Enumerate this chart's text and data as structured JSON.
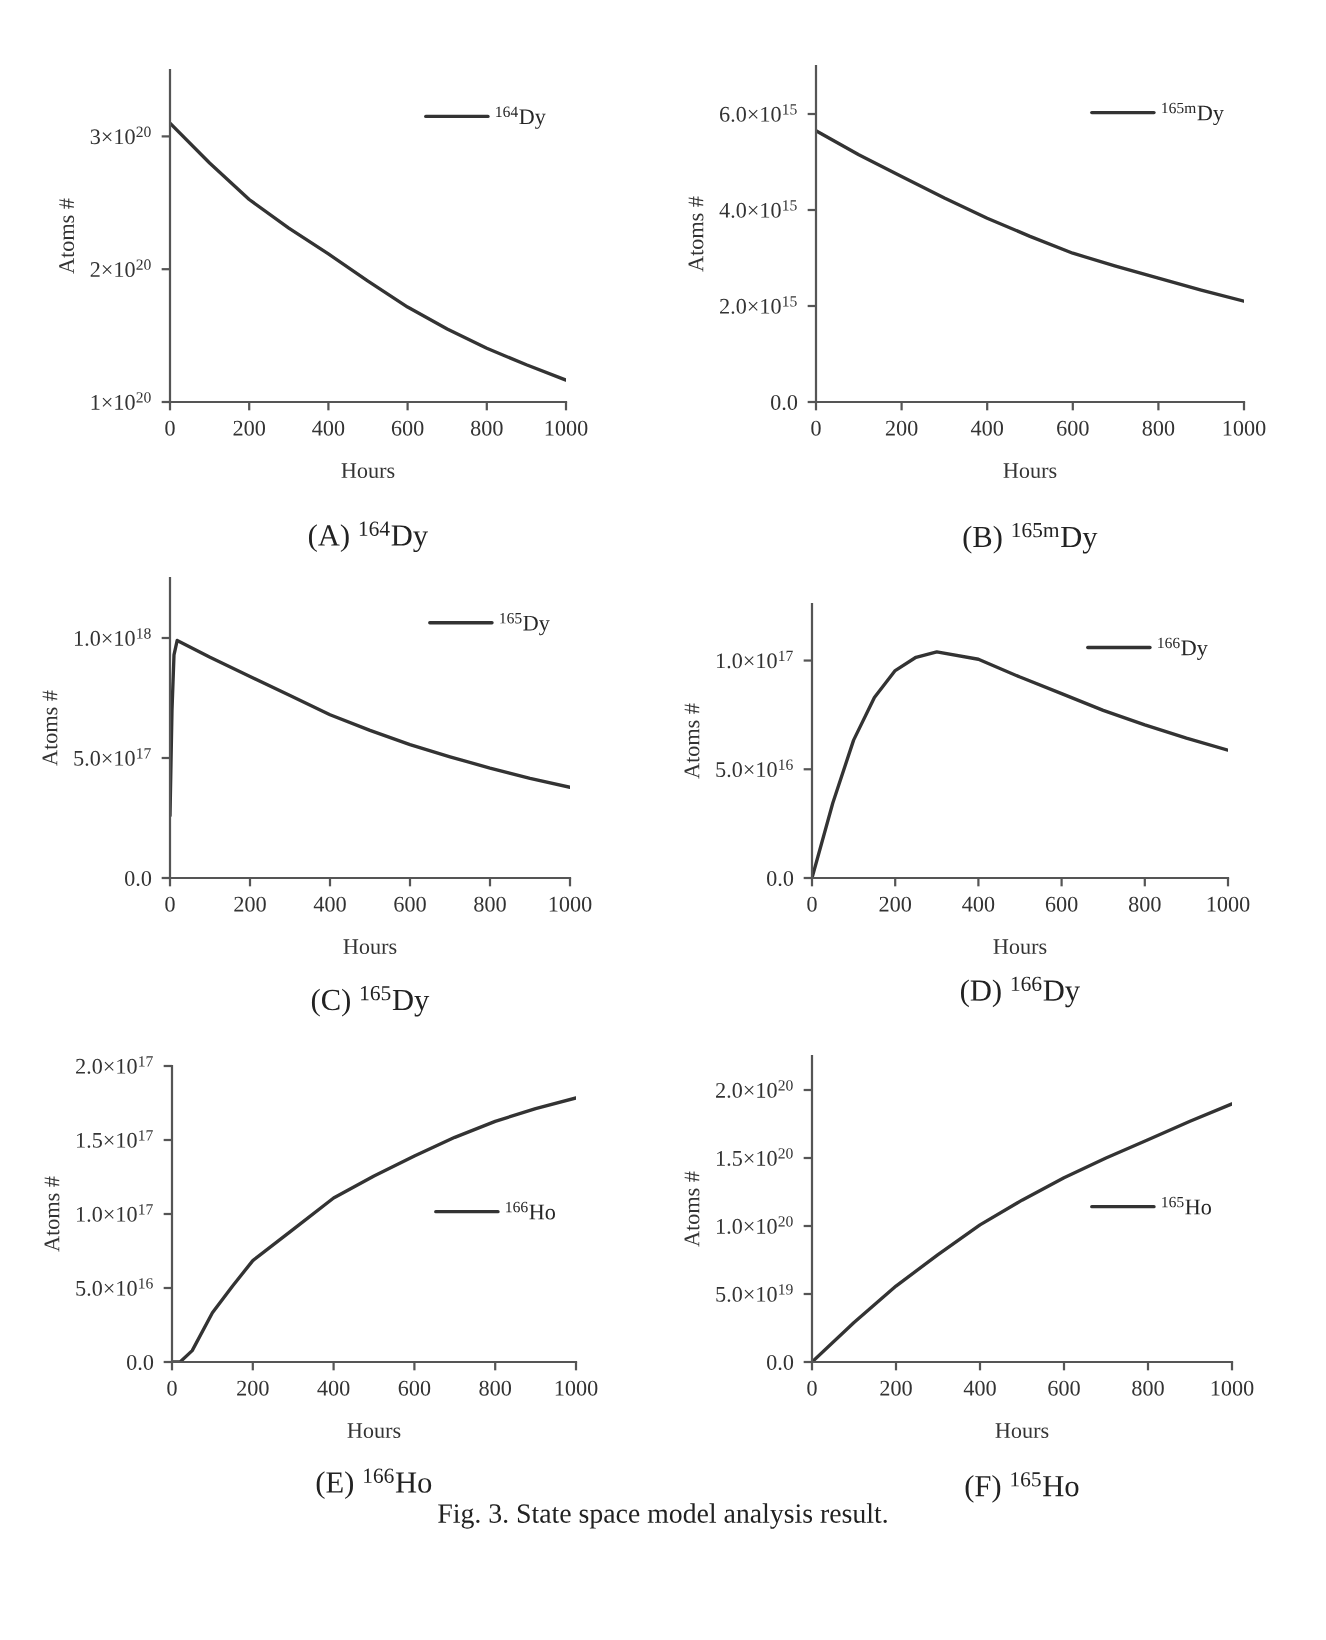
{
  "chart_data": [
    {
      "type": "line",
      "title": "(A) $^{164}$Dy",
      "xlabel": "Hours",
      "ylabel": "Atoms #",
      "legend": "top right",
      "x": [
        0,
        100,
        200,
        300,
        400,
        500,
        600,
        700,
        800,
        900,
        1000
      ],
      "series": [
        {
          "name": "$^{164}$Dy",
          "color": "#333333",
          "values": [
            3.1e+20,
            2.8e+20,
            2.525e+20,
            2.31e+20,
            2.115e+20,
            1.91e+20,
            1.715e+20,
            1.55e+20,
            1.405e+20,
            1.28e+20,
            1.165e+20
          ]
        }
      ],
      "xlim": [
        0,
        1000
      ],
      "xticks": [
        0,
        200,
        400,
        600,
        800,
        1000
      ],
      "ylim": [
        1e+20,
        3.5e+20
      ],
      "yticks": [
        {
          "value": 1e+20,
          "label": "1×10$^{20}$"
        },
        {
          "value": 2e+20,
          "label": "2×10$^{20}$"
        },
        {
          "value": 3e+20,
          "label": "3×10$^{20}$"
        }
      ]
    },
    {
      "type": "line",
      "title": "(B) $^{165m}$Dy",
      "xlabel": "Hours",
      "ylabel": "Atoms #",
      "legend": "top right",
      "x": [
        0,
        100,
        200,
        300,
        400,
        500,
        600,
        700,
        800,
        900,
        1000
      ],
      "series": [
        {
          "name": "$^{165m}$Dy",
          "color": "#333333",
          "values": [
            5650000000000000.0,
            5150000000000000.0,
            4700000000000000.0,
            4250000000000000.0,
            3830000000000000.0,
            3450000000000000.0,
            3100000000000000.0,
            2830000000000000.0,
            2580000000000000.0,
            2330000000000000.0,
            2100000000000000.0
          ]
        }
      ],
      "xlim": [
        0,
        1000
      ],
      "xticks": [
        0,
        200,
        400,
        600,
        800,
        1000
      ],
      "ylim": [
        0,
        7000000000000000.0
      ],
      "yticks": [
        {
          "value": 0,
          "label": "0.0"
        },
        {
          "value": 2000000000000000.0,
          "label": "2.0×10$^{15}$"
        },
        {
          "value": 4000000000000000.0,
          "label": "4.0×10$^{15}$"
        },
        {
          "value": 6000000000000000.0,
          "label": "6.0×10$^{15}$"
        }
      ]
    },
    {
      "type": "line",
      "title": "(C) $^{165}$Dy",
      "xlabel": "Hours",
      "ylabel": "Atoms #",
      "legend": "top right",
      "x": [
        0,
        5,
        10,
        18,
        100,
        200,
        300,
        400,
        500,
        600,
        700,
        800,
        900,
        1000
      ],
      "series": [
        {
          "name": "$^{165}$Dy",
          "color": "#333333",
          "values": [
            2.6e+17,
            7e+17,
            9.3e+17,
            9.9e+17,
            9.2e+17,
            8.4e+17,
            7.6e+17,
            6.8e+17,
            6.15e+17,
            5.56e+17,
            5.05e+17,
            4.58e+17,
            4.15e+17,
            3.78e+17
          ]
        }
      ],
      "xlim": [
        0,
        1000
      ],
      "xticks": [
        0,
        200,
        400,
        600,
        800,
        1000
      ],
      "ylim": [
        0,
        1.25e+18
      ],
      "yticks": [
        {
          "value": 0,
          "label": "0.0"
        },
        {
          "value": 5e+17,
          "label": "5.0×10$^{17}$"
        },
        {
          "value": 1e+18,
          "label": "1.0×10$^{18}$"
        }
      ]
    },
    {
      "type": "line",
      "title": "(D) $^{166}$Dy",
      "xlabel": "Hours",
      "ylabel": "Atoms #",
      "legend": "top right",
      "x": [
        0,
        50,
        100,
        150,
        200,
        250,
        300,
        400,
        500,
        600,
        700,
        800,
        900,
        1000
      ],
      "series": [
        {
          "name": "$^{166}$Dy",
          "color": "#333333",
          "values": [
            0,
            3.45e+16,
            6.34e+16,
            8.3e+16,
            9.54e+16,
            1.015e+17,
            1.04e+17,
            1.006e+17,
            9.24e+16,
            8.48e+16,
            7.71e+16,
            7.04e+16,
            6.43e+16,
            5.88e+16
          ]
        }
      ],
      "xlim": [
        0,
        1000
      ],
      "xticks": [
        0,
        200,
        400,
        600,
        800,
        1000
      ],
      "ylim": [
        0,
        1.26e+17
      ],
      "yticks": [
        {
          "value": 0,
          "label": "0.0"
        },
        {
          "value": 5e+16,
          "label": "5.0×10$^{16}$"
        },
        {
          "value": 1e+17,
          "label": "1.0×10$^{17}$"
        }
      ]
    },
    {
      "type": "line",
      "title": "(E) $^{166}$Ho",
      "xlabel": "Hours",
      "ylabel": "Atoms #",
      "legend": "right",
      "x": [
        0,
        20,
        50,
        100,
        150,
        200,
        300,
        400,
        500,
        600,
        700,
        800,
        900,
        1000
      ],
      "series": [
        {
          "name": "$^{166}$Ho",
          "color": "#333333",
          "values": [
            0,
            0,
            7700000000000000.0,
            3.33e+16,
            5.14e+16,
            6.85e+16,
            8.96e+16,
            1.108e+17,
            1.257e+17,
            1.392e+17,
            1.518e+17,
            1.626e+17,
            1.712e+17,
            1.784e+17
          ]
        }
      ],
      "xlim": [
        0,
        1000
      ],
      "xticks": [
        0,
        200,
        400,
        600,
        800,
        1000
      ],
      "ylim": [
        0,
        2e+17
      ],
      "yticks": [
        {
          "value": 0,
          "label": "0.0"
        },
        {
          "value": 5e+16,
          "label": "5.0×10$^{16}$"
        },
        {
          "value": 1e+17,
          "label": "1.0×10$^{17}$"
        },
        {
          "value": 1.5e+17,
          "label": "1.5×10$^{17}$"
        },
        {
          "value": 2e+17,
          "label": "2.0×10$^{17}$"
        }
      ]
    },
    {
      "type": "line",
      "title": "(F) $^{165}$Ho",
      "xlabel": "Hours",
      "ylabel": "Atoms #",
      "legend": "right",
      "x": [
        0,
        100,
        200,
        300,
        400,
        500,
        600,
        700,
        800,
        900,
        1000
      ],
      "series": [
        {
          "name": "$^{165}$Ho",
          "color": "#333333",
          "values": [
            0,
            2.9e+19,
            5.58e+19,
            7.9e+19,
            1.008e+20,
            1.19e+20,
            1.355e+20,
            1.5e+20,
            1.634e+20,
            1.77e+20,
            1.898e+20
          ]
        }
      ],
      "xlim": [
        0,
        1000
      ],
      "xticks": [
        0,
        200,
        400,
        600,
        800,
        1000
      ],
      "ylim": [
        0,
        2.25e+20
      ],
      "yticks": [
        {
          "value": 0,
          "label": "0.0"
        },
        {
          "value": 5e+19,
          "label": "5.0×10$^{19}$"
        },
        {
          "value": 1e+20,
          "label": "1.0×10$^{20}$"
        },
        {
          "value": 1.5e+20,
          "label": "1.5×10$^{20}$"
        },
        {
          "value": 2e+20,
          "label": "2.0×10$^{20}$"
        }
      ],
      "annotations": [
        "Fig. 3. State space model analysis result."
      ]
    }
  ]
}
